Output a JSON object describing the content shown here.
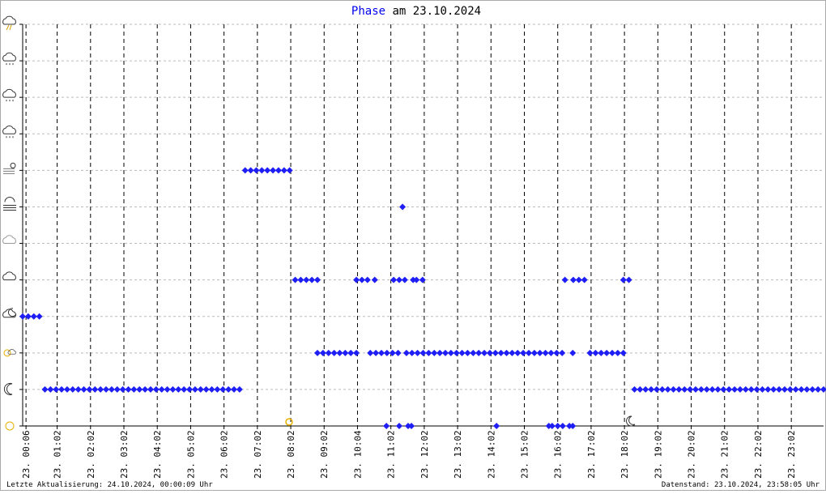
{
  "chart_data": {
    "type": "scatter",
    "title_parts": [
      "Phase",
      "am 23.10.2024"
    ],
    "footer_left": "Letzte Aktualisierung: 24.10.2024, 00:00:09 Uhr",
    "footer_right": "Datenstand: 23.10.2024, 23:58:05 Uhr",
    "color": "#1f1ff5",
    "xlim": [
      0,
      1440
    ],
    "xticks": [
      {
        "value": 6,
        "label": "23. 00:06"
      },
      {
        "value": 62,
        "label": "23. 01:02"
      },
      {
        "value": 122,
        "label": "23. 02:02"
      },
      {
        "value": 182,
        "label": "23. 03:02"
      },
      {
        "value": 242,
        "label": "23. 04:02"
      },
      {
        "value": 302,
        "label": "23. 05:02"
      },
      {
        "value": 362,
        "label": "23. 06:02"
      },
      {
        "value": 422,
        "label": "23. 07:02"
      },
      {
        "value": 482,
        "label": "23. 08:02"
      },
      {
        "value": 542,
        "label": "23. 09:02"
      },
      {
        "value": 602,
        "label": "23. 10:04"
      },
      {
        "value": 662,
        "label": "23. 11:02"
      },
      {
        "value": 722,
        "label": "23. 12:02"
      },
      {
        "value": 782,
        "label": "23. 13:02"
      },
      {
        "value": 842,
        "label": "23. 14:02"
      },
      {
        "value": 902,
        "label": "23. 15:02"
      },
      {
        "value": 962,
        "label": "23. 16:02"
      },
      {
        "value": 1022,
        "label": "23. 17:02"
      },
      {
        "value": 1082,
        "label": "23. 18:02"
      },
      {
        "value": 1142,
        "label": "23. 19:02"
      },
      {
        "value": 1202,
        "label": "23. 20:02"
      },
      {
        "value": 1262,
        "label": "23. 21:02"
      },
      {
        "value": 1322,
        "label": "23. 22:02"
      },
      {
        "value": 1382,
        "label": "23. 23:02"
      }
    ],
    "ylim": [
      0,
      11
    ],
    "yticks": [
      0,
      1,
      2,
      3,
      4,
      5,
      6,
      7,
      8,
      9,
      10,
      11
    ],
    "grid": true,
    "sunrise": 479,
    "sunset": 1092,
    "x": [
      0,
      10,
      20,
      30,
      40,
      50,
      60,
      70,
      80,
      90,
      100,
      110,
      120,
      130,
      140,
      150,
      160,
      170,
      180,
      190,
      200,
      210,
      220,
      230,
      240,
      250,
      260,
      270,
      280,
      290,
      300,
      310,
      320,
      330,
      340,
      350,
      360,
      370,
      380,
      390,
      400,
      410,
      420,
      430,
      440,
      450,
      460,
      470,
      480,
      490,
      500,
      510,
      520,
      530,
      530,
      540,
      550,
      560,
      570,
      580,
      590,
      600,
      600,
      610,
      620,
      633,
      654,
      625,
      635,
      645,
      655,
      665,
      675,
      683,
      667,
      677,
      687,
      702,
      708,
      719,
      677,
      693,
      699,
      690,
      700,
      710,
      720,
      730,
      740,
      750,
      760,
      770,
      780,
      790,
      800,
      810,
      820,
      830,
      840,
      850,
      860,
      870,
      880,
      890,
      900,
      910,
      920,
      930,
      940,
      950,
      960,
      970,
      989,
      852,
      946,
      952,
      962,
      971,
      983,
      989,
      975,
      990,
      1000,
      1010,
      1020,
      1030,
      1040,
      1050,
      1060,
      1070,
      1080,
      1080,
      1090,
      1100,
      1110,
      1120,
      1130,
      1140,
      1150,
      1160,
      1170,
      1180,
      1190,
      1200,
      1210,
      1220,
      1230,
      1240,
      1250,
      1260,
      1270,
      1280,
      1290,
      1300,
      1310,
      1320,
      1330,
      1340,
      1350,
      1360,
      1370,
      1380,
      1390,
      1400,
      1410,
      1420,
      1430,
      1440
    ],
    "values": [
      3,
      3,
      3,
      3,
      1,
      1,
      1,
      1,
      1,
      1,
      1,
      1,
      1,
      1,
      1,
      1,
      1,
      1,
      1,
      1,
      1,
      1,
      1,
      1,
      1,
      1,
      1,
      1,
      1,
      1,
      1,
      1,
      1,
      1,
      1,
      1,
      1,
      1,
      1,
      1,
      7,
      7,
      7,
      7,
      7,
      7,
      7,
      7,
      7,
      4,
      4,
      4,
      4,
      4,
      2,
      2,
      2,
      2,
      2,
      2,
      2,
      2,
      4,
      4,
      4,
      4,
      0,
      2,
      2,
      2,
      2,
      2,
      2,
      6,
      4,
      4,
      4,
      4,
      4,
      4,
      0,
      0,
      0,
      2,
      2,
      2,
      2,
      2,
      2,
      2,
      2,
      2,
      2,
      2,
      2,
      2,
      2,
      2,
      2,
      2,
      2,
      2,
      2,
      2,
      2,
      2,
      2,
      2,
      2,
      2,
      2,
      2,
      2,
      0,
      0,
      0,
      0,
      0,
      0,
      0,
      4,
      4,
      4,
      4,
      2,
      2,
      2,
      2,
      2,
      2,
      2,
      4,
      4,
      1,
      1,
      1,
      1,
      1,
      1,
      1,
      1,
      1,
      1,
      1,
      1,
      1,
      1,
      1,
      1,
      1,
      1,
      1,
      1,
      1,
      1,
      1,
      1,
      1,
      1,
      1,
      1,
      1,
      1,
      1,
      1,
      1,
      1,
      1
    ]
  }
}
